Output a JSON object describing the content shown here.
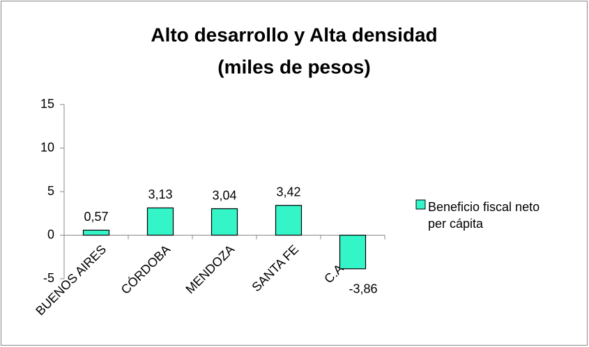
{
  "chart_data": {
    "type": "bar",
    "title": "Alto desarrollo y Alta densidad",
    "subtitle": "(miles de pesos)",
    "categories": [
      "BUENOS AIRES",
      "CÓRDOBA",
      "MENDOZA",
      "SANTA FE",
      "C.A.B.A."
    ],
    "series": [
      {
        "name": "Beneficio fiscal neto per cápita",
        "color": "#33f5c8",
        "values": [
          0.57,
          3.13,
          3.04,
          3.42,
          -3.86
        ],
        "value_labels": [
          "0,57",
          "3,13",
          "3,04",
          "3,42",
          "-3,86"
        ]
      }
    ],
    "ylim": [
      -5,
      15
    ],
    "yticks": [
      -5,
      0,
      5,
      10,
      15
    ],
    "grid": false,
    "legend": "right"
  }
}
